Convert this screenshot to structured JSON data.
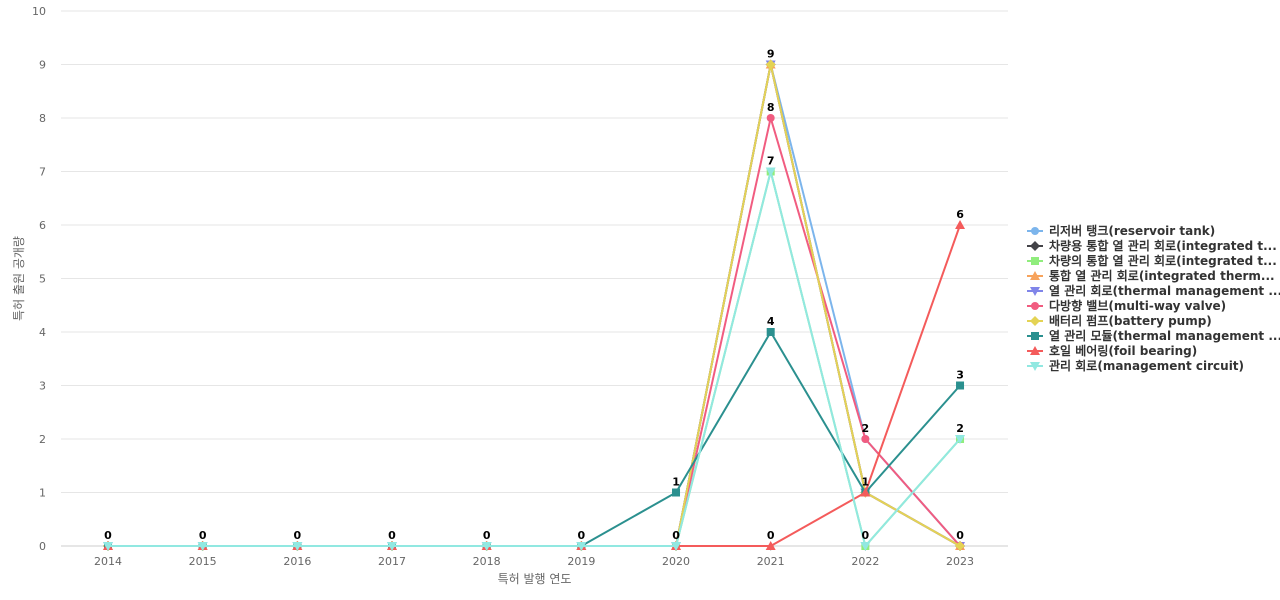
{
  "chart_data": {
    "type": "line",
    "title": "",
    "xlabel": "특허 발행 연도",
    "ylabel": "특허 출원 공개량",
    "ylim": [
      0,
      10
    ],
    "yticks": [
      0,
      1,
      2,
      3,
      4,
      5,
      6,
      7,
      8,
      9,
      10
    ],
    "grid": true,
    "legend_position": "right",
    "categories": [
      "2014",
      "2015",
      "2016",
      "2017",
      "2018",
      "2019",
      "2020",
      "2021",
      "2022",
      "2023"
    ],
    "series": [
      {
        "name": "리저버 탱크(reservoir tank)",
        "color": "#7cb5ec",
        "marker": "circle",
        "values": [
          0,
          0,
          0,
          0,
          0,
          0,
          0,
          9,
          2,
          0
        ]
      },
      {
        "name": "차량용 통합 열 관리 회로(integrated t...",
        "color": "#434348",
        "marker": "diamond",
        "values": [
          0,
          0,
          0,
          0,
          0,
          0,
          0,
          9,
          1,
          0
        ]
      },
      {
        "name": "차량의 통합 열 관리 회로(integrated t...",
        "color": "#90ed7d",
        "marker": "square",
        "values": [
          0,
          0,
          0,
          0,
          0,
          0,
          0,
          7,
          0,
          2
        ]
      },
      {
        "name": "통합 열 관리 회로(integrated therm...",
        "color": "#f7a35c",
        "marker": "triangle",
        "values": [
          0,
          0,
          0,
          0,
          0,
          0,
          0,
          9,
          1,
          0
        ]
      },
      {
        "name": "열 관리 회로(thermal management ...",
        "color": "#8085e9",
        "marker": "triangle-down",
        "values": [
          0,
          0,
          0,
          0,
          0,
          0,
          0,
          9,
          1,
          0
        ]
      },
      {
        "name": "다방향 밸브(multi-way valve)",
        "color": "#f15c80",
        "marker": "circle",
        "values": [
          0,
          0,
          0,
          0,
          0,
          0,
          0,
          8,
          2,
          0
        ]
      },
      {
        "name": "배터리 펌프(battery pump)",
        "color": "#e4d354",
        "marker": "diamond",
        "values": [
          0,
          0,
          0,
          0,
          0,
          0,
          0,
          9,
          1,
          0
        ]
      },
      {
        "name": "열 관리 모듈(thermal management ...",
        "color": "#2b908f",
        "marker": "square",
        "values": [
          0,
          0,
          0,
          0,
          0,
          0,
          1,
          4,
          1,
          3
        ]
      },
      {
        "name": "호일 베어링(foil bearing)",
        "color": "#f45b5b",
        "marker": "triangle",
        "values": [
          0,
          0,
          0,
          0,
          0,
          0,
          0,
          0,
          1,
          6
        ]
      },
      {
        "name": "관리 회로(management circuit)",
        "color": "#91e8e1",
        "marker": "triangle-down",
        "values": [
          0,
          0,
          0,
          0,
          0,
          0,
          0,
          7,
          0,
          2
        ]
      }
    ],
    "data_labels": [
      {
        "category": "2014",
        "value": 0,
        "text": "0"
      },
      {
        "category": "2015",
        "value": 0,
        "text": "0"
      },
      {
        "category": "2016",
        "value": 0,
        "text": "0"
      },
      {
        "category": "2017",
        "value": 0,
        "text": "0"
      },
      {
        "category": "2018",
        "value": 0,
        "text": "0"
      },
      {
        "category": "2019",
        "value": 0,
        "text": "0"
      },
      {
        "category": "2020",
        "value": 0,
        "text": "0"
      },
      {
        "category": "2020",
        "value": 1,
        "text": "1"
      },
      {
        "category": "2021",
        "value": 9,
        "text": "9"
      },
      {
        "category": "2021",
        "value": 8,
        "text": "8"
      },
      {
        "category": "2021",
        "value": 7,
        "text": "7"
      },
      {
        "category": "2021",
        "value": 4,
        "text": "4"
      },
      {
        "category": "2021",
        "value": 0,
        "text": "0"
      },
      {
        "category": "2022",
        "value": 2,
        "text": "2"
      },
      {
        "category": "2022",
        "value": 1,
        "text": "1"
      },
      {
        "category": "2022",
        "value": 0,
        "text": "0"
      },
      {
        "category": "2023",
        "value": 6,
        "text": "6"
      },
      {
        "category": "2023",
        "value": 3,
        "text": "3"
      },
      {
        "category": "2023",
        "value": 2,
        "text": "2"
      },
      {
        "category": "2023",
        "value": 0,
        "text": "0"
      }
    ]
  }
}
